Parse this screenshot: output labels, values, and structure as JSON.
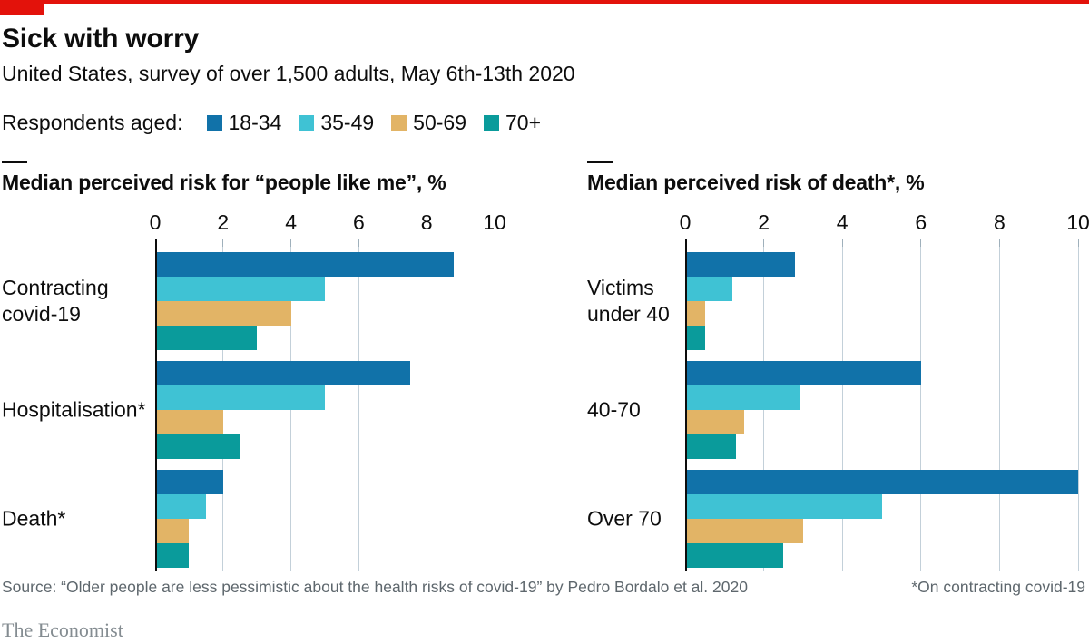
{
  "header": {
    "title": "Sick with worry",
    "subtitle": "United States, survey of over 1,500 adults, May 6th-13th 2020"
  },
  "legend": {
    "label": "Respondents aged:",
    "groups": [
      {
        "label": "18-34",
        "color": "#1172A9"
      },
      {
        "label": "35-49",
        "color": "#3FC2D4"
      },
      {
        "label": "50-69",
        "color": "#E2B466"
      },
      {
        "label": "70+",
        "color": "#0A9B9B"
      }
    ]
  },
  "chart_data": [
    {
      "type": "bar",
      "orientation": "horizontal",
      "title": "Median perceived risk for “people like me”, %",
      "x_ticks": [
        0,
        2,
        4,
        6,
        8,
        10
      ],
      "xlim": [
        0,
        10
      ],
      "grid": "vertical",
      "legend_position": "top-shared",
      "categories": [
        "Contracting\ncovid-19",
        "Hospitalisation*",
        "Death*"
      ],
      "series": [
        {
          "name": "18-34",
          "values": [
            8.8,
            7.5,
            2
          ]
        },
        {
          "name": "35-49",
          "values": [
            5,
            5,
            1.5
          ]
        },
        {
          "name": "50-69",
          "values": [
            4,
            2,
            1
          ]
        },
        {
          "name": "70+",
          "values": [
            3,
            2.5,
            1
          ]
        }
      ]
    },
    {
      "type": "bar",
      "orientation": "horizontal",
      "title": "Median perceived risk of death*, %",
      "x_ticks": [
        0,
        2,
        4,
        6,
        8,
        10
      ],
      "xlim": [
        0,
        10
      ],
      "grid": "vertical",
      "legend_position": "top-shared",
      "categories": [
        "Victims\nunder 40",
        "40-70",
        "Over 70"
      ],
      "series": [
        {
          "name": "18-34",
          "values": [
            2.8,
            6,
            10
          ]
        },
        {
          "name": "35-49",
          "values": [
            1.2,
            2.9,
            5
          ]
        },
        {
          "name": "50-69",
          "values": [
            0.5,
            1.5,
            3
          ]
        },
        {
          "name": "70+",
          "values": [
            0.5,
            1.3,
            2.5
          ]
        }
      ]
    }
  ],
  "footer": {
    "source": "Source: “Older people are less pessimistic about the health risks of covid-19” by Pedro Bordalo et al. 2020",
    "footnote": "*On contracting covid-19",
    "wordmark": "The Economist"
  },
  "colors": {
    "brand_red": "#E3120B",
    "gridline": "#C3D0D9",
    "axis": "#0D0D0D",
    "text": "#0D0D0D",
    "muted_text": "#5E676D",
    "wordmark_gray": "#848C91"
  }
}
